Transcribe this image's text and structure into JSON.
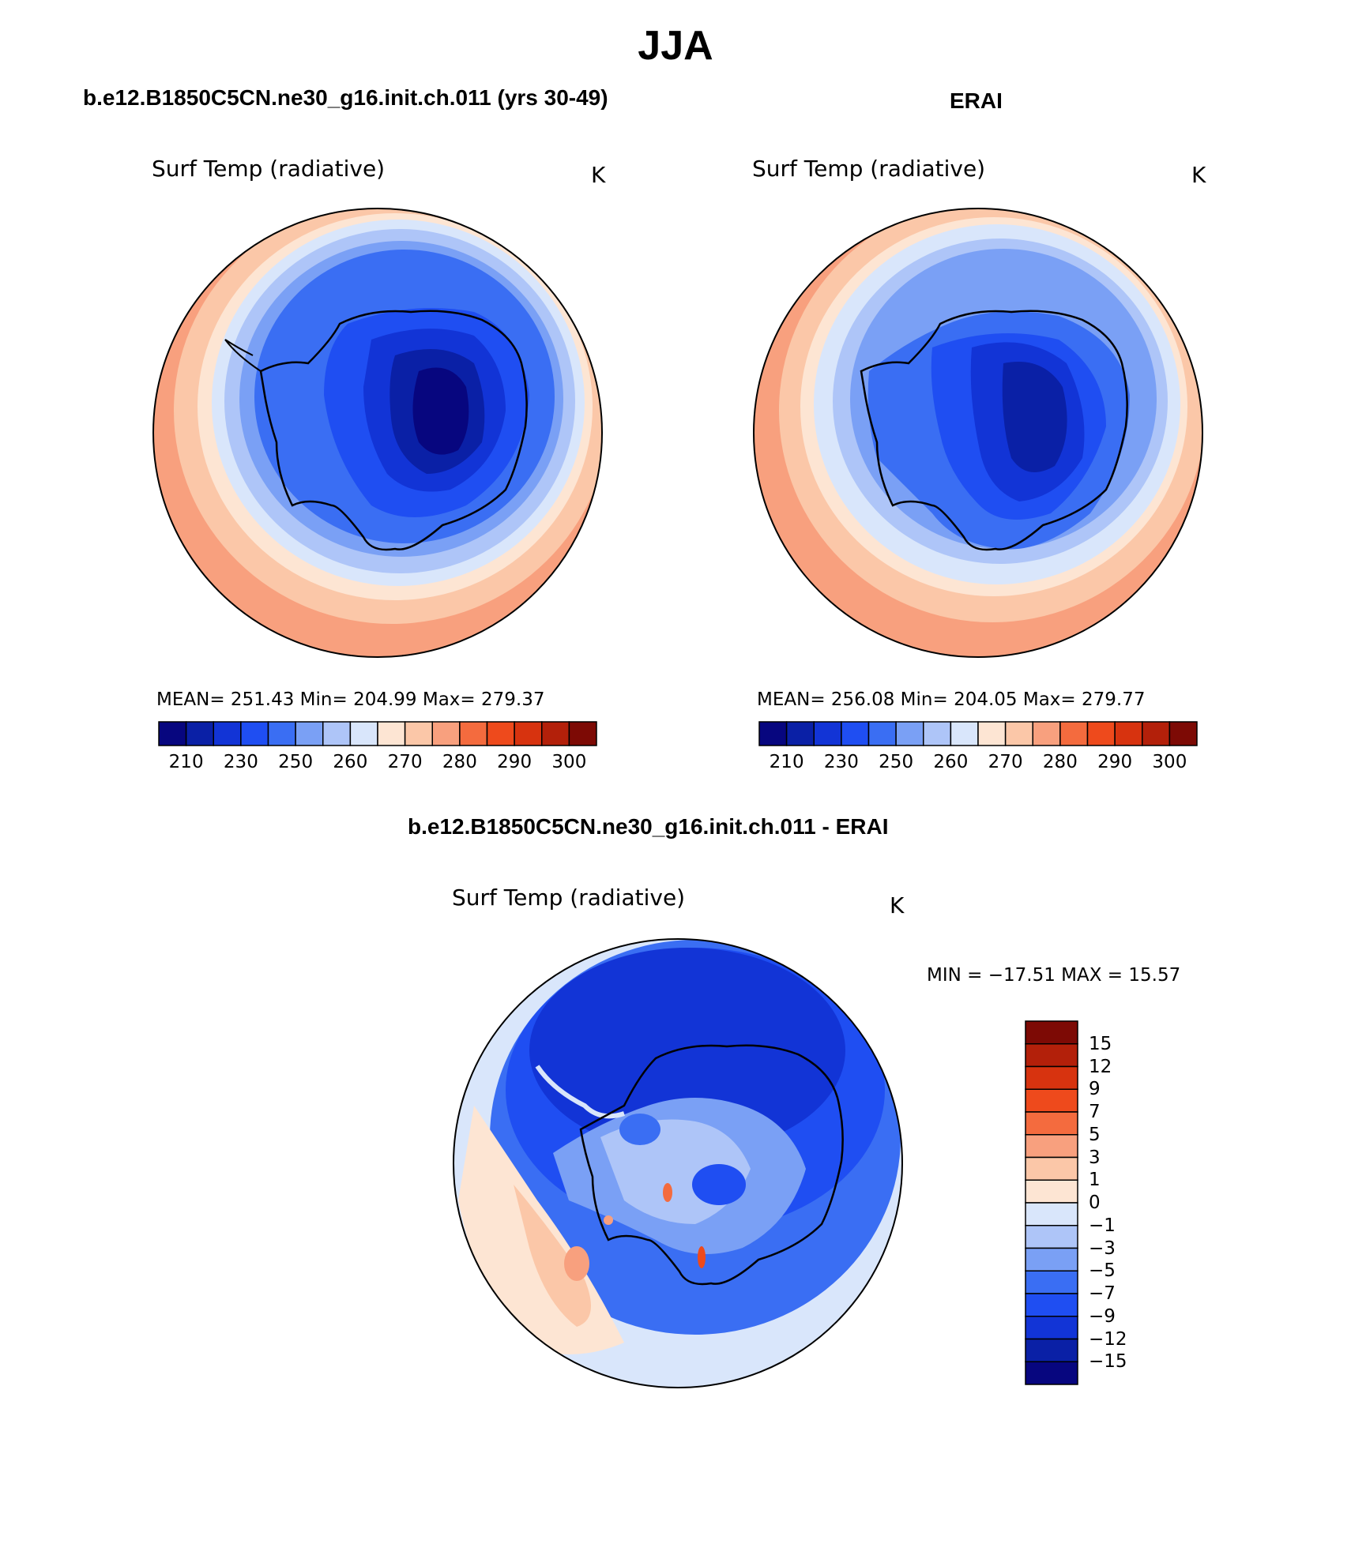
{
  "figure": {
    "season": "JJA"
  },
  "panels": [
    {
      "case_title": "b.e12.B1850C5CN.ne30_g16.init.ch.011 (yrs 30-49)",
      "variable": "Surf Temp (radiative)",
      "units": "K",
      "stats": "MEAN=  251.43    Min=  204.99    Max=  279.37",
      "map": "south-polar-stereographic"
    },
    {
      "case_title": "ERAI",
      "variable": "Surf Temp (radiative)",
      "units": "K",
      "stats": "MEAN=  256.08    Min=  204.05    Max=  279.77",
      "map": "south-polar-stereographic"
    },
    {
      "case_title": "b.e12.B1850C5CN.ne30_g16.init.ch.011 - ERAI",
      "variable": "Surf Temp (radiative)",
      "units": "K",
      "stats": "MIN =  −17.51  MAX =   15.57",
      "map": "south-polar-stereographic"
    }
  ],
  "colorbars": {
    "absolute": {
      "colors": [
        "#07067f",
        "#0a20a6",
        "#1234d6",
        "#1f4ef2",
        "#3a6ef3",
        "#7aa0f5",
        "#aec5f8",
        "#d9e6fb",
        "#fde5d3",
        "#fbc7a8",
        "#f8a07e",
        "#f46b3e",
        "#ee4a1c",
        "#d7330f",
        "#b3200a",
        "#7d0a05"
      ],
      "labels": [
        "210",
        "230",
        "250",
        "260",
        "270",
        "280",
        "290",
        "300"
      ]
    },
    "difference": {
      "colors": [
        "#07067f",
        "#0a20a6",
        "#1234d6",
        "#1f4ef2",
        "#3a6ef3",
        "#7aa0f5",
        "#aec5f8",
        "#d9e6fb",
        "#fde5d3",
        "#fbc7a8",
        "#f8a07e",
        "#f46b3e",
        "#ee4a1c",
        "#d7330f",
        "#b3200a",
        "#7d0a05"
      ],
      "labels": [
        "15",
        "12",
        "9",
        "7",
        "5",
        "3",
        "1",
        "0",
        "−1",
        "−3",
        "−5",
        "−7",
        "−9",
        "−12",
        "−15"
      ]
    }
  }
}
